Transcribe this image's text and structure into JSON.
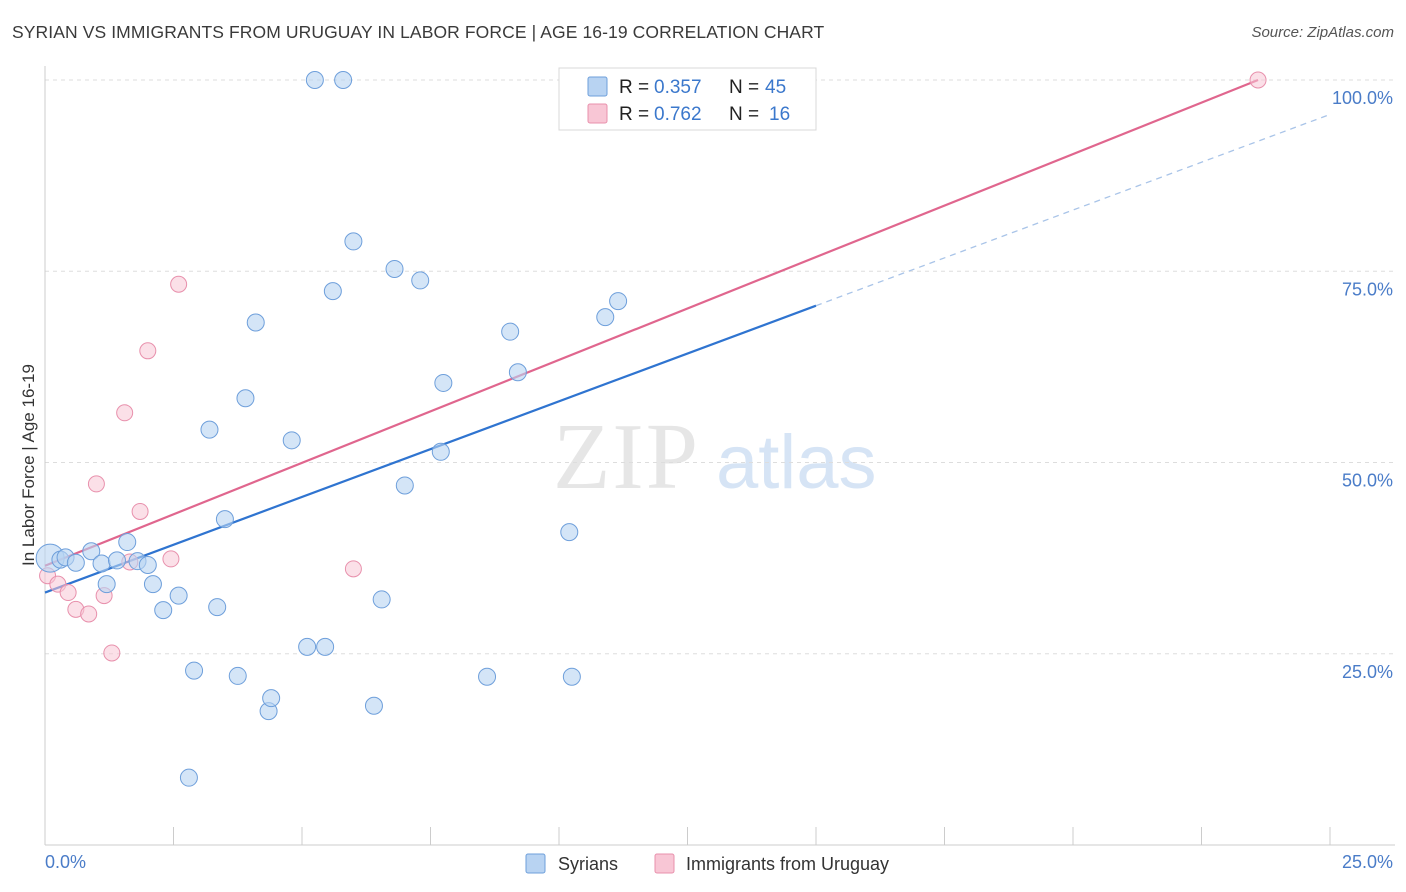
{
  "header": {
    "title": "SYRIAN VS IMMIGRANTS FROM URUGUAY IN LABOR FORCE | AGE 16-19 CORRELATION CHART",
    "source": "Source: ZipAtlas.com"
  },
  "watermark": {
    "zip": "ZIP",
    "atlas": "atlas"
  },
  "colors": {
    "syrians_fill": "#b8d3f2",
    "syrians_stroke": "#6e9fdb",
    "syrians_line": "#2f74d0",
    "uruguay_fill": "#f8c6d5",
    "uruguay_stroke": "#e890ac",
    "uruguay_line": "#e0668e",
    "axis_label": "#4a7cc8",
    "grid": "#dddddd"
  },
  "legend_stats": [
    {
      "r_label": "R =",
      "r_value": "0.357",
      "n_label": "N =",
      "n_value": "45"
    },
    {
      "r_label": "R =",
      "r_value": "0.762",
      "n_label": "N =",
      "n_value": "16"
    }
  ],
  "chart_data": {
    "type": "scatter",
    "title": "SYRIAN VS IMMIGRANTS FROM URUGUAY IN LABOR FORCE | AGE 16-19 CORRELATION CHART",
    "xlabel": "",
    "ylabel": "In Labor Force | Age 16-19",
    "xlim": [
      0,
      25
    ],
    "ylim": [
      0,
      100
    ],
    "x_tick_labels": [
      "0.0%",
      "25.0%"
    ],
    "y_ticks": [
      25,
      50,
      75,
      100
    ],
    "y_tick_labels": [
      "25.0%",
      "50.0%",
      "75.0%",
      "100.0%"
    ],
    "grid": true,
    "legend_position": "bottom-center",
    "series": [
      {
        "name": "Syrians",
        "points": [
          {
            "x": 0.1,
            "y": 37.5
          },
          {
            "x": 0.3,
            "y": 37.3
          },
          {
            "x": 0.4,
            "y": 37.6
          },
          {
            "x": 0.6,
            "y": 36.9
          },
          {
            "x": 0.9,
            "y": 38.4
          },
          {
            "x": 1.1,
            "y": 36.8
          },
          {
            "x": 1.2,
            "y": 34.1
          },
          {
            "x": 1.4,
            "y": 37.2
          },
          {
            "x": 1.6,
            "y": 39.6
          },
          {
            "x": 1.8,
            "y": 37.1
          },
          {
            "x": 2.0,
            "y": 36.6
          },
          {
            "x": 2.1,
            "y": 34.1
          },
          {
            "x": 2.3,
            "y": 30.7
          },
          {
            "x": 2.6,
            "y": 32.6
          },
          {
            "x": 2.9,
            "y": 22.8
          },
          {
            "x": 2.8,
            "y": 8.8
          },
          {
            "x": 3.2,
            "y": 54.3
          },
          {
            "x": 3.5,
            "y": 42.6
          },
          {
            "x": 3.35,
            "y": 31.1
          },
          {
            "x": 3.75,
            "y": 22.1
          },
          {
            "x": 3.9,
            "y": 58.4
          },
          {
            "x": 4.1,
            "y": 68.3
          },
          {
            "x": 4.35,
            "y": 17.5
          },
          {
            "x": 4.4,
            "y": 19.2
          },
          {
            "x": 4.8,
            "y": 52.9
          },
          {
            "x": 5.1,
            "y": 25.9
          },
          {
            "x": 5.45,
            "y": 25.9
          },
          {
            "x": 5.6,
            "y": 72.4
          },
          {
            "x": 6.0,
            "y": 78.9
          },
          {
            "x": 6.4,
            "y": 18.2
          },
          {
            "x": 6.55,
            "y": 32.1
          },
          {
            "x": 6.8,
            "y": 75.3
          },
          {
            "x": 7.0,
            "y": 47.0
          },
          {
            "x": 7.3,
            "y": 73.8
          },
          {
            "x": 7.7,
            "y": 51.4
          },
          {
            "x": 7.75,
            "y": 60.4
          },
          {
            "x": 8.6,
            "y": 22.0
          },
          {
            "x": 9.05,
            "y": 67.1
          },
          {
            "x": 9.2,
            "y": 61.8
          },
          {
            "x": 10.2,
            "y": 40.9
          },
          {
            "x": 10.25,
            "y": 22.0
          },
          {
            "x": 10.9,
            "y": 69.0
          },
          {
            "x": 11.15,
            "y": 71.1
          },
          {
            "x": 5.25,
            "y": 100.0
          },
          {
            "x": 5.8,
            "y": 100.0
          }
        ],
        "trend": {
          "x": [
            0,
            15
          ],
          "y": [
            33.0,
            70.5
          ],
          "dashed_extension_to": [
            25,
            95.5
          ]
        }
      },
      {
        "name": "Immigrants from Uruguay",
        "points": [
          {
            "x": 0.05,
            "y": 35.2
          },
          {
            "x": 0.25,
            "y": 34.1
          },
          {
            "x": 0.45,
            "y": 33.0
          },
          {
            "x": 0.6,
            "y": 30.8
          },
          {
            "x": 0.85,
            "y": 30.2
          },
          {
            "x": 1.0,
            "y": 47.2
          },
          {
            "x": 1.15,
            "y": 32.6
          },
          {
            "x": 1.3,
            "y": 25.1
          },
          {
            "x": 1.55,
            "y": 56.5
          },
          {
            "x": 1.65,
            "y": 37.0
          },
          {
            "x": 1.85,
            "y": 43.6
          },
          {
            "x": 2.0,
            "y": 64.6
          },
          {
            "x": 2.45,
            "y": 37.4
          },
          {
            "x": 2.6,
            "y": 73.3
          },
          {
            "x": 6.0,
            "y": 36.1
          },
          {
            "x": 23.6,
            "y": 100.0
          }
        ],
        "trend": {
          "x": [
            0,
            23.6
          ],
          "y": [
            36.5,
            100.0
          ]
        }
      }
    ]
  },
  "bottom_legend": {
    "syrians": "Syrians",
    "uruguay": "Immigrants from Uruguay"
  }
}
